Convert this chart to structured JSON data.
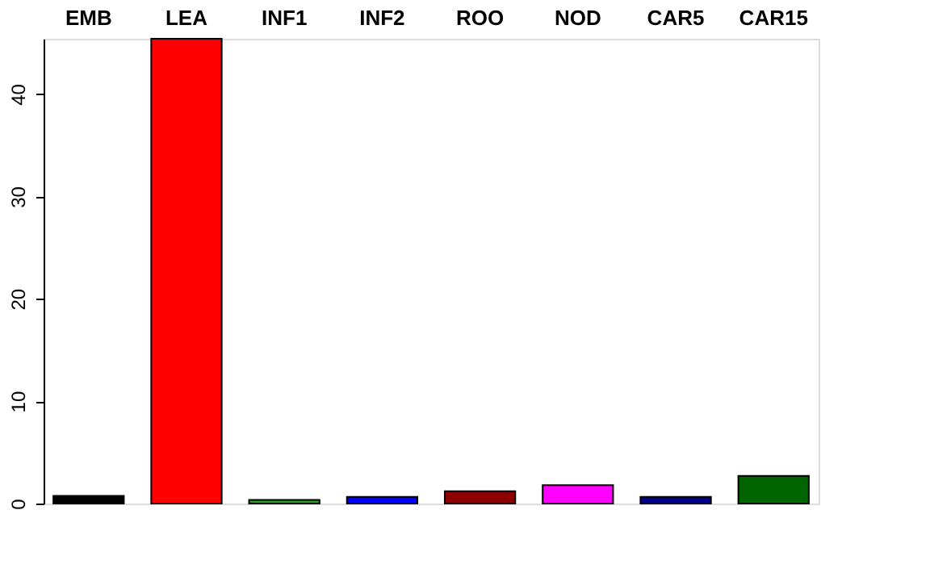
{
  "chart_data": {
    "type": "bar",
    "categories": [
      "EMB",
      "LEA",
      "INF1",
      "INF2",
      "ROO",
      "NOD",
      "CAR5",
      "CAR15"
    ],
    "values": [
      0.75,
      45.4,
      0.35,
      0.65,
      1.2,
      1.8,
      0.65,
      2.7
    ],
    "colors": [
      "#000000",
      "#ff0000",
      "#22a022",
      "#0000ff",
      "#8b0000",
      "#ff00ff",
      "#00008b",
      "#006400"
    ],
    "ylim": [
      0,
      45.4
    ],
    "yticks": [
      0,
      10,
      20,
      30,
      40
    ],
    "grid": false,
    "legend": false
  }
}
